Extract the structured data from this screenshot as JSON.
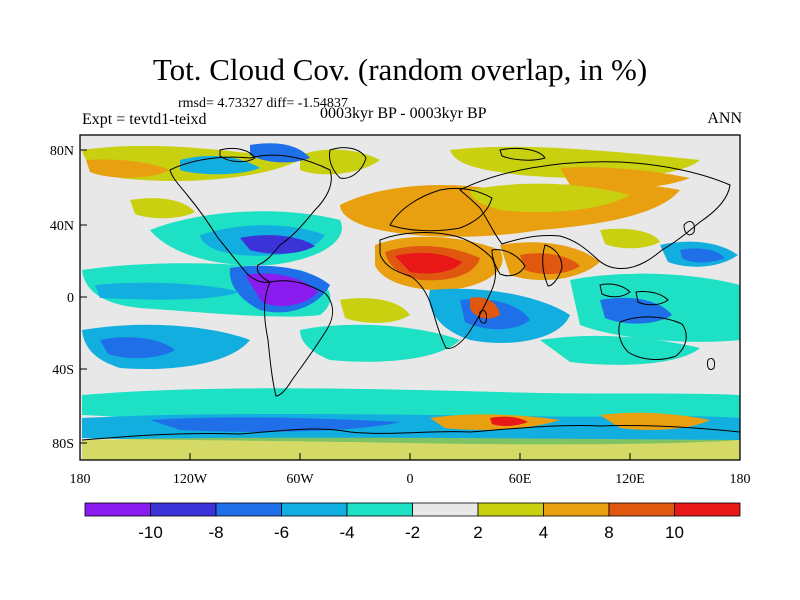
{
  "header": {
    "title": "Tot. Cloud Cov. (random overlap, in %)",
    "stats": "rmsd= 4.73327 diff= -1.54837",
    "experiment": "Expt = tevtd1-teixd",
    "period": "0003kyr BP - 0003kyr BP",
    "season": "ANN"
  },
  "map": {
    "x_ticks": [
      "180",
      "120W",
      "60W",
      "0",
      "60E",
      "120E",
      "180"
    ],
    "y_ticks": [
      "80N",
      "40N",
      "0",
      "40S",
      "80S"
    ],
    "background_color": "#e8e8e8"
  },
  "colorbar": {
    "colors": [
      "#8a1cf0",
      "#3b32d8",
      "#1f6fe8",
      "#12aee0",
      "#1ee0c4",
      "#e8e8e8",
      "#c8d010",
      "#e8a010",
      "#e05810",
      "#e81818"
    ],
    "labels": [
      "-10",
      "-8",
      "-6",
      "-4",
      "-2",
      "2",
      "4",
      "8",
      "10"
    ]
  }
}
